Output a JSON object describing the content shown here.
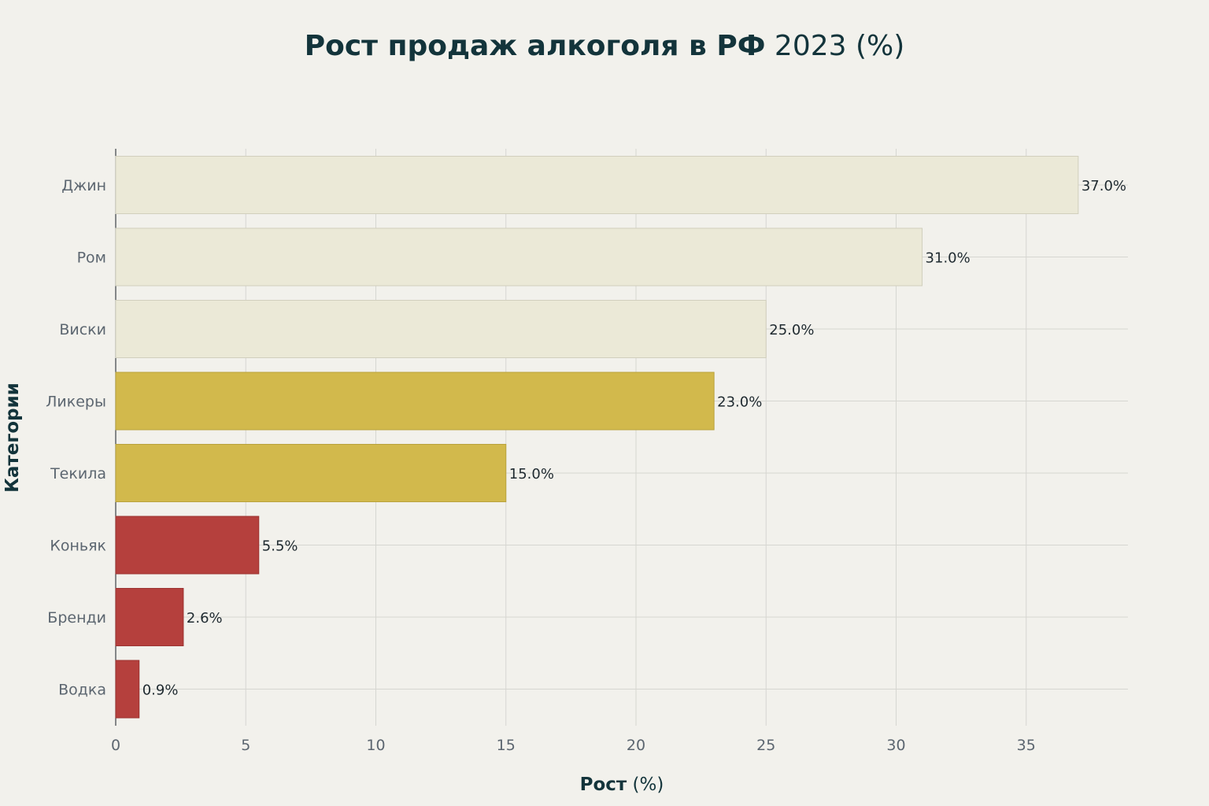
{
  "chart_data": {
    "type": "bar",
    "orientation": "horizontal",
    "title": "Рост продаж алкоголя в РФ 2023 (%)",
    "title_parts": {
      "bold": "Рост продаж алкоголя в РФ",
      "light": " 2023 (%)"
    },
    "xlabel": "Рост (%)",
    "xlabel_parts": {
      "bold": "Рост",
      "light": " (%)"
    },
    "ylabel": "Категории",
    "categories": [
      "Джин",
      "Ром",
      "Виски",
      "Ликеры",
      "Текила",
      "Коньяк",
      "Бренди",
      "Водка"
    ],
    "values": [
      37.0,
      31.0,
      25.0,
      23.0,
      15.0,
      5.5,
      2.6,
      0.9
    ],
    "value_labels": [
      "37.0%",
      "31.0%",
      "25.0%",
      "23.0%",
      "15.0%",
      "5.5%",
      "2.6%",
      "0.9%"
    ],
    "colors": [
      "#ebe9d7",
      "#ebe9d7",
      "#ebe9d7",
      "#d2b94c",
      "#d2b94c",
      "#b5403d",
      "#b5403d",
      "#b5403d"
    ],
    "xticks": [
      0,
      5,
      10,
      15,
      20,
      25,
      30,
      35
    ],
    "xlim": [
      0,
      39
    ],
    "grid": true,
    "legend": "none"
  }
}
